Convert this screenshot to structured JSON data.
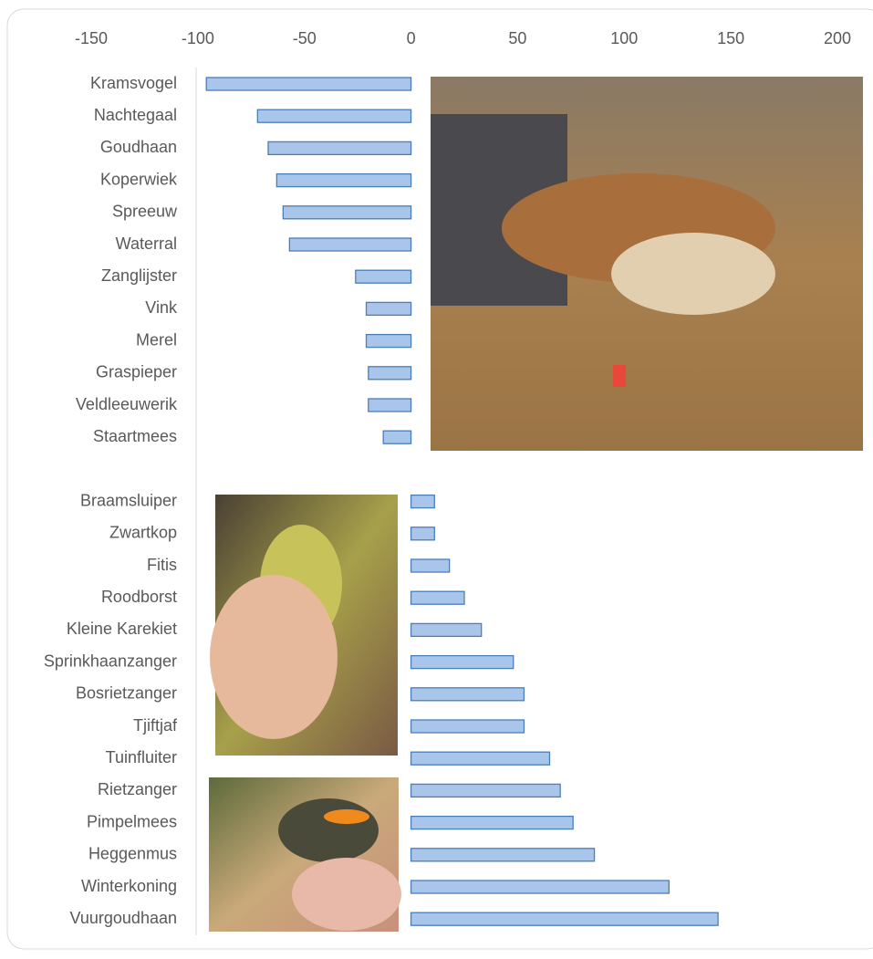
{
  "chart_data": {
    "type": "barh",
    "categories": [
      "Kramsvogel",
      "Nachtegaal",
      "Goudhaan",
      "Koperwiek",
      "Spreeuw",
      "Waterral",
      "Zanglijster",
      "Vink",
      "Merel",
      "Graspieper",
      "Veldleeuwerik",
      "Staartmees",
      null,
      "Braamsluiper",
      "Zwartkop",
      "Fitis",
      "Roodborst",
      "Kleine Karekiet",
      "Sprinkhaanzanger",
      "Bosrietzanger",
      "Tjiftjaf",
      "Tuinfluiter",
      "Rietzanger",
      "Pimpelmees",
      "Heggenmus",
      "Winterkoning",
      "Vuurgoudhaan"
    ],
    "values": [
      -96,
      -72,
      -67,
      -63,
      -60,
      -57,
      -26,
      -21,
      -21,
      -20,
      -20,
      -13,
      null,
      11,
      11,
      18,
      25,
      33,
      48,
      53,
      53,
      65,
      70,
      76,
      86,
      121,
      144
    ],
    "color": "#a9c6ea",
    "xlim": [
      -150,
      200
    ],
    "xticks": [
      -150,
      -100,
      -50,
      0,
      50,
      100,
      150,
      200
    ],
    "grid": false
  }
}
